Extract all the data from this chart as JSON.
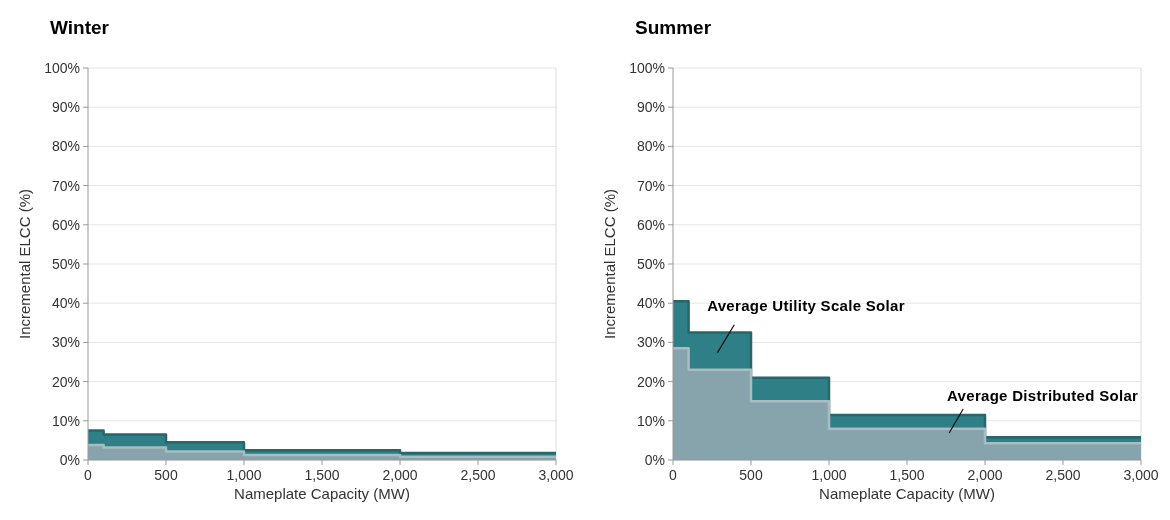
{
  "chart_data": [
    {
      "type": "area",
      "title": "Winter",
      "xlabel": "Nameplate Capacity (MW)",
      "ylabel": "Incremental ELCC (%)",
      "xlim": [
        0,
        3000
      ],
      "xticks": [
        {
          "value": 0,
          "label": "0"
        },
        {
          "value": 500,
          "label": "500"
        },
        {
          "value": 1000,
          "label": "1,000"
        },
        {
          "value": 1500,
          "label": "1,500"
        },
        {
          "value": 2000,
          "label": "2,000"
        },
        {
          "value": 2500,
          "label": "2,500"
        },
        {
          "value": 3000,
          "label": "3,000"
        }
      ],
      "ylim": [
        0,
        100
      ],
      "yticks": [
        {
          "value": 0,
          "label": "0%"
        },
        {
          "value": 10,
          "label": "10%"
        },
        {
          "value": 20,
          "label": "20%"
        },
        {
          "value": 30,
          "label": "30%"
        },
        {
          "value": 40,
          "label": "40%"
        },
        {
          "value": 50,
          "label": "50%"
        },
        {
          "value": 60,
          "label": "60%"
        },
        {
          "value": 70,
          "label": "70%"
        },
        {
          "value": 80,
          "label": "80%"
        },
        {
          "value": 90,
          "label": "90%"
        },
        {
          "value": 100,
          "label": "100%"
        }
      ],
      "grid": "y",
      "series": [
        {
          "color": "#2e7f86",
          "x": [
            0,
            100,
            100,
            500,
            500,
            1000,
            1000,
            2000,
            2000,
            3000
          ],
          "values": [
            7.5,
            7.5,
            6.5,
            6.5,
            4.5,
            4.5,
            2.5,
            2.5,
            1.8,
            1.8
          ]
        },
        {
          "color": "#87a4ad",
          "x": [
            0,
            100,
            100,
            500,
            500,
            1000,
            1000,
            2000,
            2000,
            3000
          ],
          "values": [
            3.8,
            3.8,
            3.2,
            3.2,
            2.2,
            2.2,
            1.3,
            1.3,
            0.8,
            0.8
          ]
        }
      ]
    },
    {
      "type": "area",
      "title": "Summer",
      "xlabel": "Nameplate Capacity (MW)",
      "ylabel": "Incremental ELCC (%)",
      "xlim": [
        0,
        3000
      ],
      "xticks": [
        {
          "value": 0,
          "label": "0"
        },
        {
          "value": 500,
          "label": "500"
        },
        {
          "value": 1000,
          "label": "1,000"
        },
        {
          "value": 1500,
          "label": "1,500"
        },
        {
          "value": 2000,
          "label": "2,000"
        },
        {
          "value": 2500,
          "label": "2,500"
        },
        {
          "value": 3000,
          "label": "3,000"
        }
      ],
      "ylim": [
        0,
        100
      ],
      "yticks": [
        {
          "value": 0,
          "label": "0%"
        },
        {
          "value": 10,
          "label": "10%"
        },
        {
          "value": 20,
          "label": "20%"
        },
        {
          "value": 30,
          "label": "30%"
        },
        {
          "value": 40,
          "label": "40%"
        },
        {
          "value": 50,
          "label": "50%"
        },
        {
          "value": 60,
          "label": "60%"
        },
        {
          "value": 70,
          "label": "70%"
        },
        {
          "value": 80,
          "label": "80%"
        },
        {
          "value": 90,
          "label": "90%"
        },
        {
          "value": 100,
          "label": "100%"
        }
      ],
      "grid": "y",
      "series": [
        {
          "color": "#2e7f86",
          "x": [
            0,
            100,
            100,
            500,
            500,
            1000,
            1000,
            2000,
            2000,
            3000
          ],
          "values": [
            40.5,
            40.5,
            32.5,
            32.5,
            21,
            21,
            11.5,
            11.5,
            5.8,
            5.8
          ]
        },
        {
          "color": "#87a4ad",
          "x": [
            0,
            100,
            100,
            500,
            500,
            1000,
            1000,
            2000,
            2000,
            3000
          ],
          "values": [
            28.5,
            28.5,
            23,
            23,
            15,
            15,
            8,
            8,
            4.3,
            4.3
          ]
        }
      ],
      "annotations": [
        "Average Utility Scale Solar",
        "Average Distributed Solar"
      ]
    }
  ]
}
